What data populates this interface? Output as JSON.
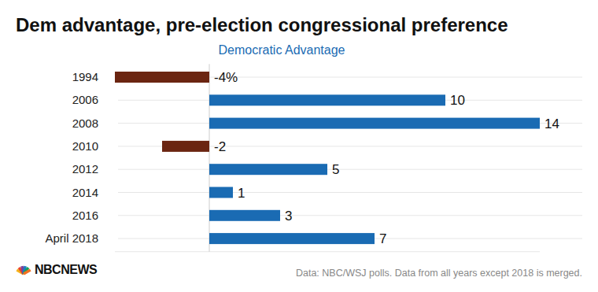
{
  "chart_data": {
    "type": "bar",
    "orientation": "horizontal",
    "title": "Dem advantage, pre-election congressional preference",
    "subtitle": "Democratic Advantage",
    "categories": [
      "1994",
      "2006",
      "2008",
      "2010",
      "2012",
      "2014",
      "2016",
      "April 2018"
    ],
    "values": [
      -4,
      10,
      14,
      -2,
      5,
      1,
      3,
      7
    ],
    "value_labels": [
      "-4%",
      "10",
      "14",
      "-2",
      "5",
      "1",
      "3",
      "7"
    ],
    "colors": [
      "#6b2511",
      "#1a6bb3",
      "#1a6bb3",
      "#6b2511",
      "#1a6bb3",
      "#1a6bb3",
      "#1a6bb3",
      "#1a6bb3"
    ],
    "xlim": [
      -4,
      14
    ],
    "xticks": [
      0
    ],
    "tick_labels": "y",
    "data_labels": true,
    "grid": true,
    "source": "Data: NBC/WSJ polls. Data from all years except 2018 is merged.",
    "logo": "NBCNEWS"
  }
}
